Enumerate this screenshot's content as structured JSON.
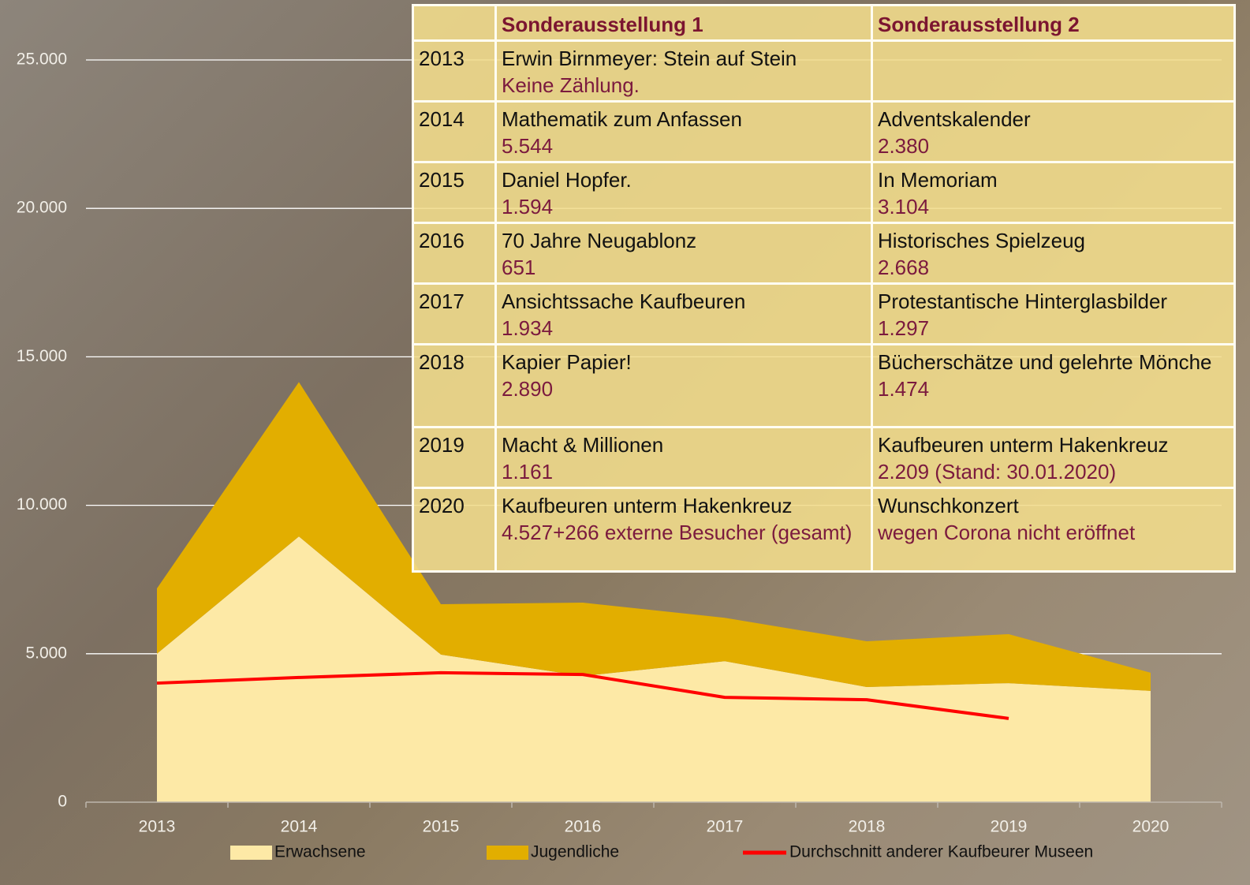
{
  "chart_data": {
    "type": "stacked-area",
    "categories": [
      "2013",
      "2014",
      "2015",
      "2016",
      "2017",
      "2018",
      "2019",
      "2020"
    ],
    "series": [
      {
        "name": "Erwachsene",
        "kind": "area",
        "color": "#fde9a6",
        "values": [
          5000,
          8950,
          4970,
          4250,
          4750,
          3880,
          4010,
          3750
        ]
      },
      {
        "name": "Jugendliche",
        "kind": "area",
        "color": "#e2ae00",
        "values": [
          2200,
          5200,
          1700,
          2470,
          1460,
          1540,
          1650,
          610
        ]
      },
      {
        "name": "Durchschnitt anderer Kaufbeurer Museen",
        "kind": "line",
        "color": "#ff0000",
        "values": [
          4010,
          4200,
          4360,
          4300,
          3530,
          3450,
          2820,
          null
        ]
      }
    ],
    "ylim": [
      0,
      25000
    ],
    "yticks": [
      0,
      {
        "value": 5000,
        "label": "5.000"
      },
      {
        "value": 10000,
        "label": "10.000"
      },
      {
        "value": 15000,
        "label": "15.000"
      },
      {
        "value": 20000,
        "label": "20.000"
      },
      {
        "value": 25000,
        "label": "25.000"
      }
    ],
    "grid": true,
    "legend": "bottom"
  },
  "table": {
    "header": [
      "Sonderausstellung 1",
      "Sonderausstellung 2"
    ],
    "rows": [
      {
        "year": "2013",
        "exhibition_1": {
          "title": "Erwin Birnmeyer: Stein auf Stein",
          "visitors": "Keine Zählung."
        }
      },
      {
        "year": "2014",
        "exhibition_1": {
          "title": "Mathematik zum Anfassen",
          "visitors": "5.544"
        },
        "exhibition_2": {
          "title": "Adventskalender",
          "visitors": "2.380"
        }
      },
      {
        "year": "2015",
        "exhibition_1": {
          "title": "Daniel Hopfer.",
          "visitors": "1.594"
        },
        "exhibition_2": {
          "title": "In Memoriam",
          "visitors": "3.104"
        }
      },
      {
        "year": "2016",
        "exhibition_1": {
          "title": "70 Jahre Neugablonz",
          "visitors": "651"
        },
        "exhibition_2": {
          "title": "Historisches Spielzeug",
          "visitors": "2.668"
        }
      },
      {
        "year": "2017",
        "exhibition_1": {
          "title": "Ansichtssache Kaufbeuren",
          "visitors": "1.934"
        },
        "exhibition_2": {
          "title": "Protestantische Hinterglasbilder",
          "visitors": "1.297"
        }
      },
      {
        "year": "2018",
        "exhibition_1": {
          "title": "Kapier Papier!",
          "visitors": "2.890"
        },
        "exhibition_2": {
          "title": "Bücherschätze und gelehrte Mönche",
          "visitors": "1.474"
        }
      },
      {
        "year": "2019",
        "exhibition_1": {
          "title": "Macht & Millionen",
          "visitors": "1.161"
        },
        "exhibition_2": {
          "title": "Kaufbeuren unterm Hakenkreuz",
          "visitors": "2.209 (Stand: 30.01.2020)"
        }
      },
      {
        "year": "2020",
        "exhibition_1": {
          "title": "Kaufbeuren unterm Hakenkreuz",
          "visitors": "4.527+266 externe Besucher (gesamt)"
        },
        "exhibition_2": {
          "title": "Wunschkonzert",
          "visitors": "wegen Corona nicht eröffnet"
        }
      }
    ]
  }
}
